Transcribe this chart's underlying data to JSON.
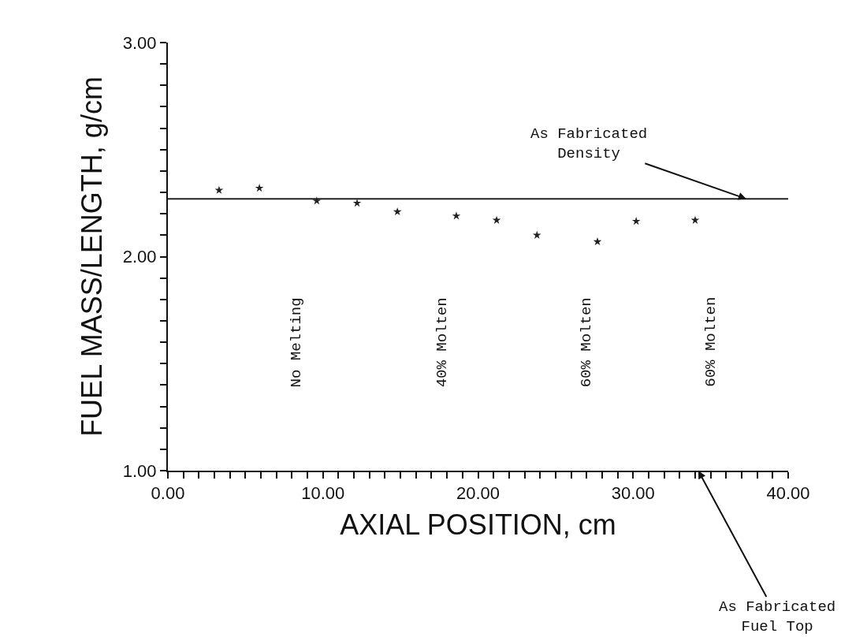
{
  "chart_data": {
    "type": "scatter",
    "xlabel": "AXIAL POSITION, cm",
    "ylabel": "FUEL MASS/LENGTH, g/cm",
    "x": [
      3.3,
      5.9,
      9.6,
      12.2,
      14.8,
      18.6,
      21.2,
      23.8,
      27.7,
      30.2,
      34.0
    ],
    "series": [
      {
        "color": "#222222",
        "values": [
          2.31,
          2.32,
          2.26,
          2.25,
          2.21,
          2.19,
          2.17,
          2.1,
          2.07,
          2.165,
          2.17
        ]
      }
    ],
    "marker": "star",
    "xlim": [
      0,
      40
    ],
    "ylim": [
      1,
      3
    ],
    "xticks": [
      {
        "value": 0,
        "label": "0.00"
      },
      {
        "value": 1,
        "label": null
      },
      {
        "value": 2,
        "label": null
      },
      {
        "value": 3,
        "label": null
      },
      {
        "value": 4,
        "label": null
      },
      {
        "value": 5,
        "label": null
      },
      {
        "value": 6,
        "label": null
      },
      {
        "value": 7,
        "label": null
      },
      {
        "value": 8,
        "label": null
      },
      {
        "value": 9,
        "label": null
      },
      {
        "value": 10,
        "label": "10.00"
      },
      {
        "value": 11,
        "label": null
      },
      {
        "value": 12,
        "label": null
      },
      {
        "value": 13,
        "label": null
      },
      {
        "value": 14,
        "label": null
      },
      {
        "value": 15,
        "label": null
      },
      {
        "value": 16,
        "label": null
      },
      {
        "value": 17,
        "label": null
      },
      {
        "value": 18,
        "label": null
      },
      {
        "value": 19,
        "label": null
      },
      {
        "value": 20,
        "label": "20.00"
      },
      {
        "value": 21,
        "label": null
      },
      {
        "value": 22,
        "label": null
      },
      {
        "value": 23,
        "label": null
      },
      {
        "value": 24,
        "label": null
      },
      {
        "value": 25,
        "label": null
      },
      {
        "value": 26,
        "label": null
      },
      {
        "value": 27,
        "label": null
      },
      {
        "value": 28,
        "label": null
      },
      {
        "value": 29,
        "label": null
      },
      {
        "value": 30,
        "label": "30.00"
      },
      {
        "value": 31,
        "label": null
      },
      {
        "value": 32,
        "label": null
      },
      {
        "value": 33,
        "label": null
      },
      {
        "value": 34,
        "label": null
      },
      {
        "value": 35,
        "label": null
      },
      {
        "value": 36,
        "label": null
      },
      {
        "value": 37,
        "label": null
      },
      {
        "value": 38,
        "label": null
      },
      {
        "value": 39,
        "label": null
      },
      {
        "value": 40,
        "label": "40.00"
      }
    ],
    "yticks": [
      {
        "value": 1,
        "label": "1.00"
      },
      {
        "value": 1.1,
        "label": null
      },
      {
        "value": 1.2,
        "label": null
      },
      {
        "value": 1.3,
        "label": null
      },
      {
        "value": 1.4,
        "label": null
      },
      {
        "value": 1.5,
        "label": null
      },
      {
        "value": 1.6,
        "label": null
      },
      {
        "value": 1.7,
        "label": null
      },
      {
        "value": 1.8,
        "label": null
      },
      {
        "value": 1.9,
        "label": null
      },
      {
        "value": 2,
        "label": "2.00"
      },
      {
        "value": 2.1,
        "label": null
      },
      {
        "value": 2.2,
        "label": null
      },
      {
        "value": 2.3,
        "label": null
      },
      {
        "value": 2.4,
        "label": null
      },
      {
        "value": 2.5,
        "label": null
      },
      {
        "value": 2.6,
        "label": null
      },
      {
        "value": 2.7,
        "label": null
      },
      {
        "value": 2.8,
        "label": null
      },
      {
        "value": 2.9,
        "label": null
      },
      {
        "value": 3,
        "label": "3.00"
      }
    ],
    "ref_lines": [
      {
        "axis": "y",
        "value": 2.27,
        "color": "#222222",
        "line_style": "solid"
      }
    ],
    "annotations": [
      {
        "text": "As Fabricated\nDensity",
        "x": 37.3,
        "y": 2.27
      },
      "As Fabricated\nFuel Top",
      "No Melting",
      "40% Molten",
      "60% Molten",
      "60% Molten"
    ]
  }
}
